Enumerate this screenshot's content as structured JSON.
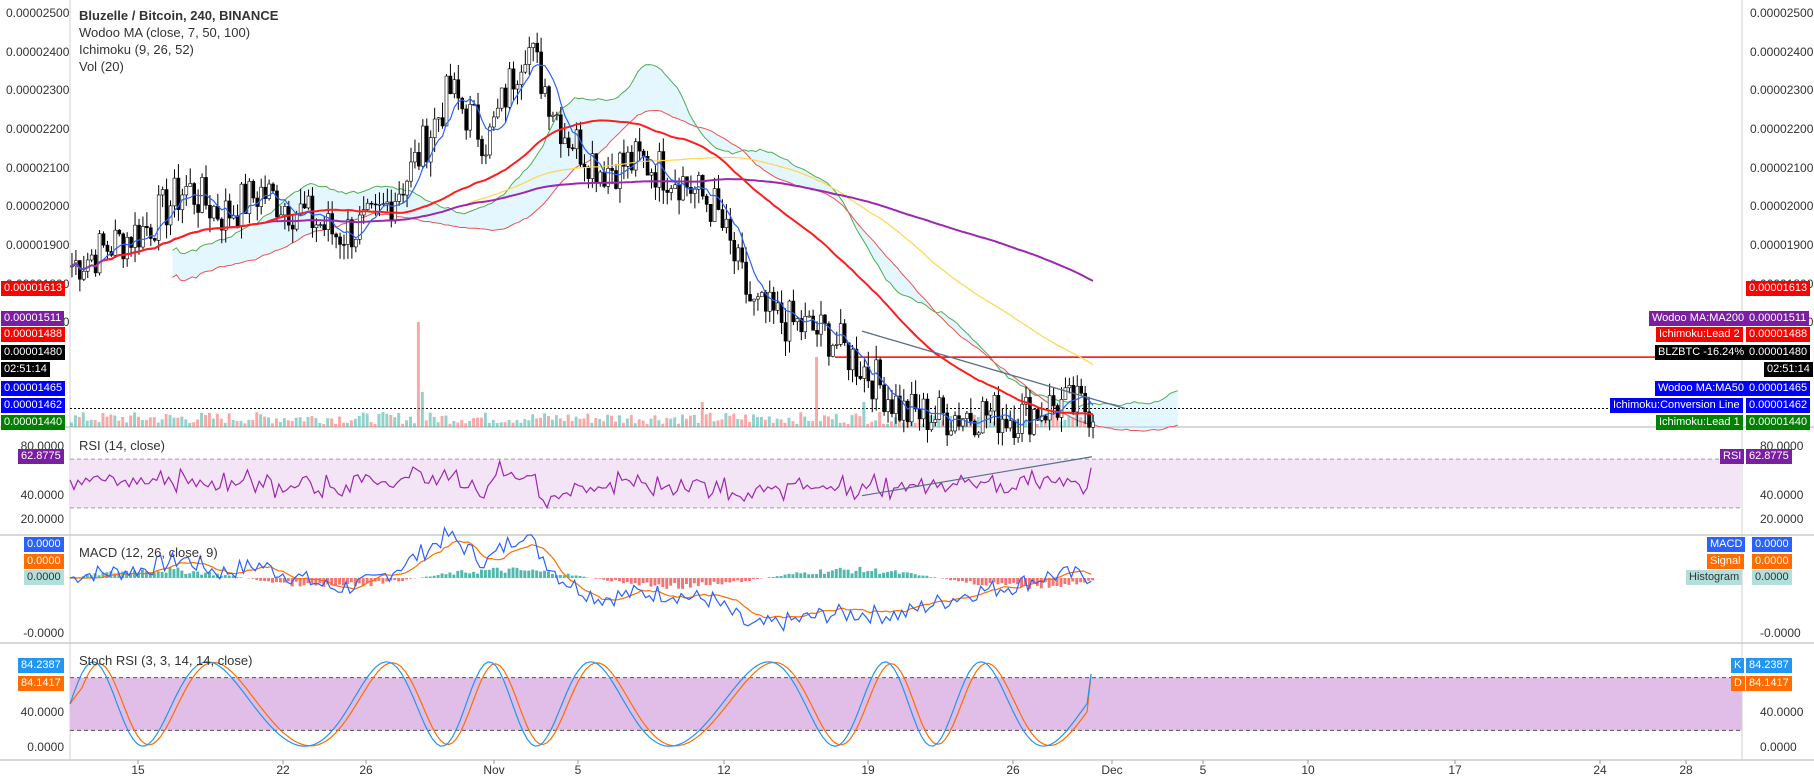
{
  "header": {
    "title": "Bluzelle / Bitcoin, 240, BINANCE",
    "indicator_1": "Wodoo MA (close, 7, 50, 100)",
    "indicator_2": "Ichimoku (9, 26, 52)",
    "indicator_3": "Vol (20)"
  },
  "panes": {
    "rsi_title": "RSI (14, close)",
    "macd_title": "MACD (12, 26, close, 9)",
    "stoch_title": "Stoch RSI (3, 3, 14, 14, close)"
  },
  "price_axis": [
    "0.00002500",
    "0.00002400",
    "0.00002300",
    "0.00002200",
    "0.00002100",
    "0.00002000",
    "0.00001900",
    "0.00001800",
    "0.00001700"
  ],
  "rsi_axis": [
    "80.0000",
    "40.0000",
    "20.0000"
  ],
  "macd_axis": [
    "0.0000",
    "-0.0000"
  ],
  "stoch_axis": [
    "40.0000",
    "0.0000"
  ],
  "time_axis": [
    "15",
    "22",
    "26",
    "Nov",
    "5",
    "12",
    "19",
    "26",
    "Dec",
    "5",
    "10",
    "17",
    "24",
    "28"
  ],
  "left_tags": {
    "t1613": "0.00001613",
    "t1511": "0.00001511",
    "t1488": "0.00001488",
    "t1480": "0.00001480",
    "tclock": "02:51:14",
    "t1465": "0.00001465",
    "t1462": "0.00001462",
    "t1440": "0.00001440",
    "rsi": "62.8775",
    "macd_a": "0.0000",
    "macd_b": "0.0000",
    "macd_c": "0.0000",
    "stoch_k": "84.2387",
    "stoch_d": "84.1417"
  },
  "right_tags": {
    "t1613": "0.00001613",
    "ma200_name": "Wodoo MA:MA200",
    "t1511": "0.00001511",
    "lead2_name": "Ichimoku:Lead 2",
    "t1488": "0.00001488",
    "symbol_name": "BLZBTC -16.24%",
    "t1480": "0.00001480",
    "tclock": "02:51:14",
    "ma50_name": "Wodoo MA:MA50",
    "t1465": "0.00001465",
    "conv_name": "Ichimoku:Conversion Line",
    "t1462": "0.00001462",
    "lead1_name": "Ichimoku:Lead 1",
    "t1440": "0.00001440",
    "rsi_name": "RSI",
    "rsi": "62.8775",
    "macd_name": "MACD",
    "macd": "0.0000",
    "signal_name": "Signal",
    "signal": "0.0000",
    "hist_name": "Histogram",
    "hist": "0.0000",
    "k_name": "K",
    "k": "84.2387",
    "d_name": "D",
    "d": "84.1417"
  },
  "colors": {
    "up": "#26a69a",
    "down": "#ef5350",
    "candle": "#000000",
    "ma7": "#2962ff",
    "ma50": "#ff1e1e",
    "ma100": "#ffd54f",
    "ma200": "#9c27b0",
    "cloud": "#b3e5fc",
    "rsi": "#9c27b0",
    "rsi_band": "#f3e5f5",
    "stoch_band": "#e1bee7",
    "k": "#2196f3",
    "d": "#ff6d00"
  },
  "chart_data": {
    "type": "candlestick",
    "title": "Bluzelle / Bitcoin, 240, BINANCE",
    "timeframe": "240",
    "unit": "BTC",
    "x_labels": [
      "15",
      "22",
      "26",
      "Nov",
      "5",
      "12",
      "19",
      "26",
      "Dec",
      "5",
      "10",
      "17",
      "24",
      "28"
    ],
    "ylim": [
      1.44e-05,
      2.5e-05
    ],
    "close_path": [
      {
        "t": "Oct 11",
        "close": 1.85e-05
      },
      {
        "t": "Oct 13",
        "close": 1.9e-05
      },
      {
        "t": "Oct 15",
        "close": 1.95e-05
      },
      {
        "t": "Oct 17",
        "close": 2.05e-05
      },
      {
        "t": "Oct 19",
        "close": 1.98e-05
      },
      {
        "t": "Oct 21",
        "close": 2.04e-05
      },
      {
        "t": "Oct 23",
        "close": 1.99e-05
      },
      {
        "t": "Oct 25",
        "close": 1.93e-05
      },
      {
        "t": "Oct 27",
        "close": 1.96e-05
      },
      {
        "t": "Oct 29",
        "close": 2.1e-05
      },
      {
        "t": "Oct 30",
        "close": 2.3e-05
      },
      {
        "t": "Nov 1",
        "close": 2.17e-05
      },
      {
        "t": "Nov 3",
        "close": 2.43e-05
      },
      {
        "t": "Nov 5",
        "close": 2.2e-05
      },
      {
        "t": "Nov 7",
        "close": 2.1e-05
      },
      {
        "t": "Nov 9",
        "close": 2.12e-05
      },
      {
        "t": "Nov 11",
        "close": 2.08e-05
      },
      {
        "t": "Nov 13",
        "close": 2e-05
      },
      {
        "t": "Nov 14",
        "close": 1.74e-05
      },
      {
        "t": "Nov 16",
        "close": 1.7e-05
      },
      {
        "t": "Nov 18",
        "close": 1.67e-05
      },
      {
        "t": "Nov 19",
        "close": 1.58e-05
      },
      {
        "t": "Nov 21",
        "close": 1.47e-05
      },
      {
        "t": "Nov 23",
        "close": 1.46e-05
      },
      {
        "t": "Nov 25",
        "close": 1.47e-05
      },
      {
        "t": "Nov 27",
        "close": 1.46e-05
      },
      {
        "t": "Nov 29",
        "close": 1.49e-05
      },
      {
        "t": "Nov 30",
        "close": 1.48e-05
      }
    ],
    "price_levels": [
      {
        "name": "horizontal line",
        "value": 1.613e-05
      },
      {
        "name": "Wodoo MA:MA200",
        "value": 1.511e-05
      },
      {
        "name": "Ichimoku:Lead 2",
        "value": 1.488e-05
      },
      {
        "name": "BLZBTC",
        "value": 1.48e-05
      },
      {
        "name": "Wodoo MA:MA50",
        "value": 1.465e-05
      },
      {
        "name": "Ichimoku:Conversion Line",
        "value": 1.462e-05
      },
      {
        "name": "Ichimoku:Lead 1",
        "value": 1.44e-05
      }
    ],
    "rsi": {
      "period": 14,
      "last": 62.8775,
      "bands": [
        70,
        30
      ]
    },
    "macd": {
      "macd": 0.0,
      "signal": 0.0,
      "histogram": 0.0
    },
    "stoch_rsi": {
      "k": 84.2387,
      "d": 84.1417,
      "bands": [
        80,
        20
      ]
    }
  }
}
